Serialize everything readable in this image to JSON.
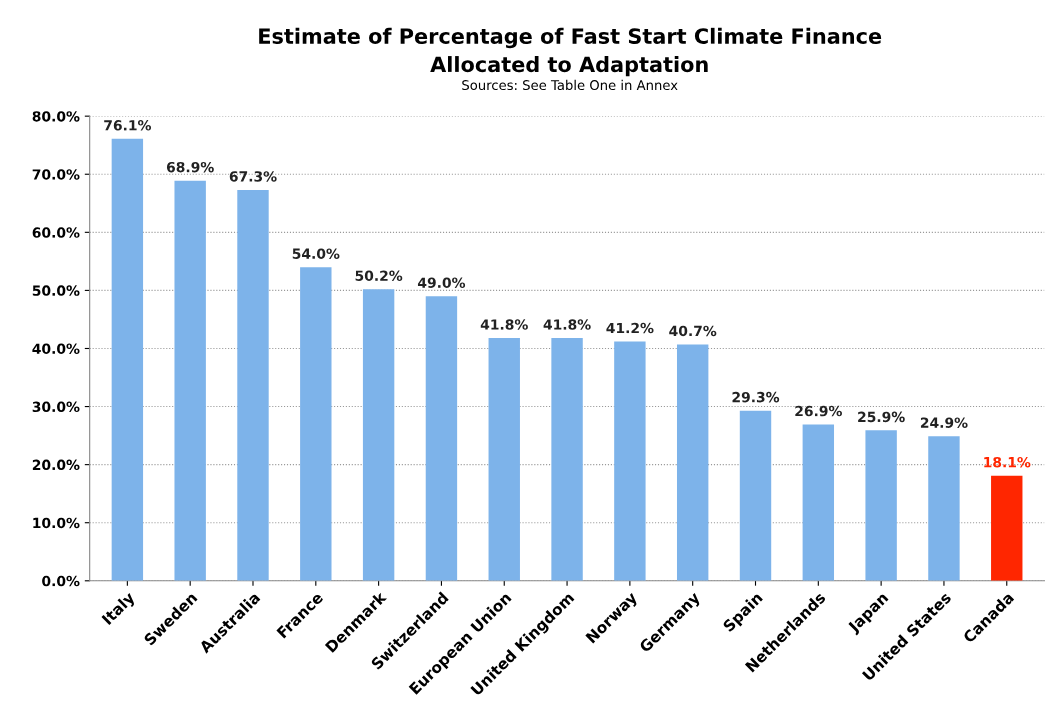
{
  "chart_data": {
    "type": "bar",
    "title": "Estimate of Percentage of Fast Start Climate Finance\nAllocated to Adaptation",
    "subtitle": "Sources: See Table One in Annex",
    "categories": [
      "Italy",
      "Sweden",
      "Australia",
      "France",
      "Denmark",
      "Switzerland",
      "European Union",
      "United Kingdom",
      "Norway",
      "Germany",
      "Spain",
      "Netherlands",
      "Japan",
      "United States",
      "Canada"
    ],
    "values": [
      76.1,
      68.9,
      67.3,
      54.0,
      50.2,
      49.0,
      41.8,
      41.8,
      41.2,
      40.7,
      29.3,
      26.9,
      25.9,
      24.9,
      18.1
    ],
    "value_labels": [
      "76.1%",
      "68.9%",
      "67.3%",
      "54.0%",
      "50.2%",
      "49.0%",
      "41.8%",
      "41.8%",
      "41.2%",
      "40.7%",
      "29.3%",
      "26.9%",
      "25.9%",
      "24.9%",
      "18.1%"
    ],
    "colors": [
      "#7db3ea",
      "#7db3ea",
      "#7db3ea",
      "#7db3ea",
      "#7db3ea",
      "#7db3ea",
      "#7db3ea",
      "#7db3ea",
      "#7db3ea",
      "#7db3ea",
      "#7db3ea",
      "#7db3ea",
      "#7db3ea",
      "#7db3ea",
      "#ff2600"
    ],
    "ylim": [
      0,
      80
    ],
    "yticks": [
      {
        "value": 0,
        "label": "0.0%"
      },
      {
        "value": 10,
        "label": "10.0%"
      },
      {
        "value": 20,
        "label": "20.0%"
      },
      {
        "value": 30,
        "label": "30.0%"
      },
      {
        "value": 40,
        "label": "40.0%"
      },
      {
        "value": 50,
        "label": "50.0%"
      },
      {
        "value": 60,
        "label": "60.0%"
      },
      {
        "value": 70,
        "label": "70.0%"
      },
      {
        "value": 80,
        "label": "80.0%"
      }
    ],
    "grid": "y",
    "legend": false
  }
}
